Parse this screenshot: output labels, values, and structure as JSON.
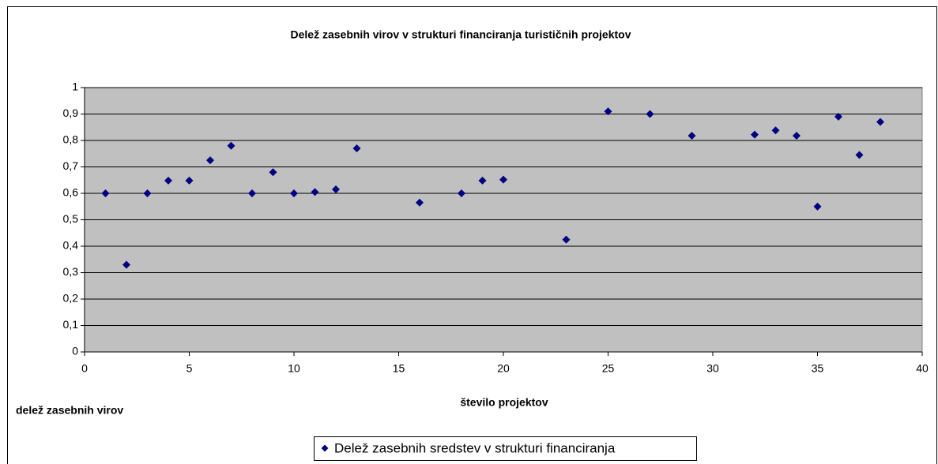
{
  "chart_data": {
    "type": "scatter",
    "title": "Delež zasebnih virov v strukturi financiranja turističnih projektov",
    "x_label": "število projektov",
    "y_label": "delež zasebnih virov",
    "series": [
      {
        "name": "Delež zasebnih sredstev v strukturi financiranja",
        "color": "#000080",
        "x": [
          1,
          2,
          3,
          4,
          5,
          6,
          7,
          8,
          9,
          10,
          11,
          12,
          13,
          16,
          18,
          19,
          20,
          23,
          25,
          27,
          29,
          32,
          33,
          34,
          35,
          36,
          37,
          38
        ],
        "values": [
          0.6,
          0.33,
          0.6,
          0.648,
          0.648,
          0.725,
          0.78,
          0.6,
          0.68,
          0.6,
          0.605,
          0.615,
          0.77,
          0.565,
          0.6,
          0.648,
          0.652,
          0.425,
          0.91,
          0.9,
          0.818,
          0.822,
          0.838,
          0.818,
          0.55,
          0.89,
          0.745,
          0.87
        ]
      }
    ],
    "xlim": [
      0,
      40
    ],
    "xticks": [
      0,
      5,
      10,
      15,
      20,
      25,
      30,
      35,
      40
    ],
    "ylim": [
      0,
      1
    ],
    "yticks": [
      0,
      {
        "value": 0.1,
        "label": "0,1"
      },
      {
        "value": 0.2,
        "label": "0,2"
      },
      {
        "value": 0.3,
        "label": "0,3"
      },
      {
        "value": 0.4,
        "label": "0,4"
      },
      {
        "value": 0.5,
        "label": "0,5"
      },
      {
        "value": 0.6,
        "label": "0,6"
      },
      {
        "value": 0.7,
        "label": "0,7"
      },
      {
        "value": 0.8,
        "label": "0,8"
      },
      {
        "value": 0.9,
        "label": "0,9"
      },
      1
    ],
    "grid": true,
    "legend": "bottom",
    "plot_background": "#c0c0c0"
  }
}
